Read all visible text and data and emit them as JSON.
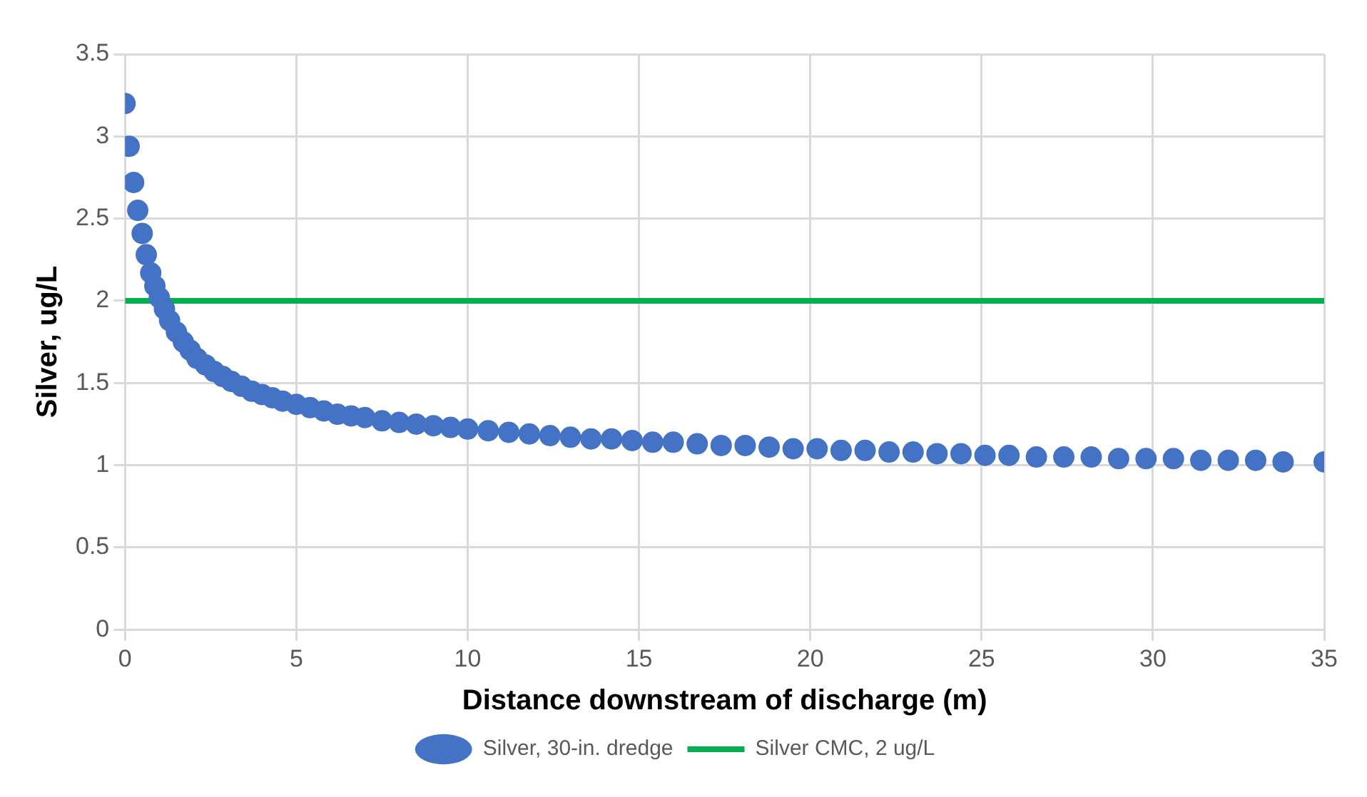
{
  "chart_data": {
    "type": "scatter",
    "xlabel": "Distance downstream of discharge (m)",
    "ylabel": "Silver, ug/L",
    "xlim": [
      0,
      35
    ],
    "xticks": [
      0,
      5,
      10,
      15,
      20,
      25,
      30,
      35
    ],
    "ylim": [
      0,
      3.5
    ],
    "yticks": [
      0,
      0.5,
      1,
      1.5,
      2,
      2.5,
      3,
      3.5
    ],
    "grid": true,
    "legend": "bottom",
    "marker": "circle",
    "series": [
      {
        "name": "Silver, 30-in. dredge",
        "color": "#4472c4",
        "x": [
          0,
          0.12,
          0.25,
          0.37,
          0.5,
          0.62,
          0.75,
          0.87,
          1,
          1.15,
          1.3,
          1.5,
          1.7,
          1.9,
          2.1,
          2.35,
          2.6,
          2.85,
          3.1,
          3.4,
          3.7,
          4,
          4.3,
          4.6,
          5,
          5.4,
          5.8,
          6.2,
          6.6,
          7,
          7.5,
          8,
          8.5,
          9,
          9.5,
          10,
          10.6,
          11.2,
          11.8,
          12.4,
          13,
          13.6,
          14.2,
          14.8,
          15.4,
          16,
          16.7,
          17.4,
          18.1,
          18.8,
          19.5,
          20.2,
          20.9,
          21.6,
          22.3,
          23,
          23.7,
          24.4,
          25.1,
          25.8,
          26.6,
          27.4,
          28.2,
          29,
          29.8,
          30.6,
          31.4,
          32.2,
          33,
          33.8,
          35
        ],
        "values": [
          3.2,
          2.94,
          2.72,
          2.55,
          2.41,
          2.28,
          2.17,
          2.09,
          2.02,
          1.95,
          1.88,
          1.81,
          1.75,
          1.7,
          1.65,
          1.61,
          1.57,
          1.54,
          1.51,
          1.48,
          1.45,
          1.43,
          1.41,
          1.39,
          1.37,
          1.35,
          1.33,
          1.31,
          1.3,
          1.29,
          1.27,
          1.26,
          1.25,
          1.24,
          1.23,
          1.22,
          1.21,
          1.2,
          1.19,
          1.18,
          1.17,
          1.16,
          1.16,
          1.15,
          1.14,
          1.14,
          1.13,
          1.12,
          1.12,
          1.11,
          1.1,
          1.1,
          1.09,
          1.09,
          1.08,
          1.08,
          1.07,
          1.07,
          1.06,
          1.06,
          1.05,
          1.05,
          1.05,
          1.04,
          1.04,
          1.04,
          1.03,
          1.03,
          1.03,
          1.02,
          1.02
        ]
      },
      {
        "name": "Silver CMC, 2 ug/L",
        "color": "#00b050",
        "type": "line",
        "marker": "none",
        "x": [
          0,
          35
        ],
        "values": [
          2,
          2
        ]
      }
    ]
  }
}
